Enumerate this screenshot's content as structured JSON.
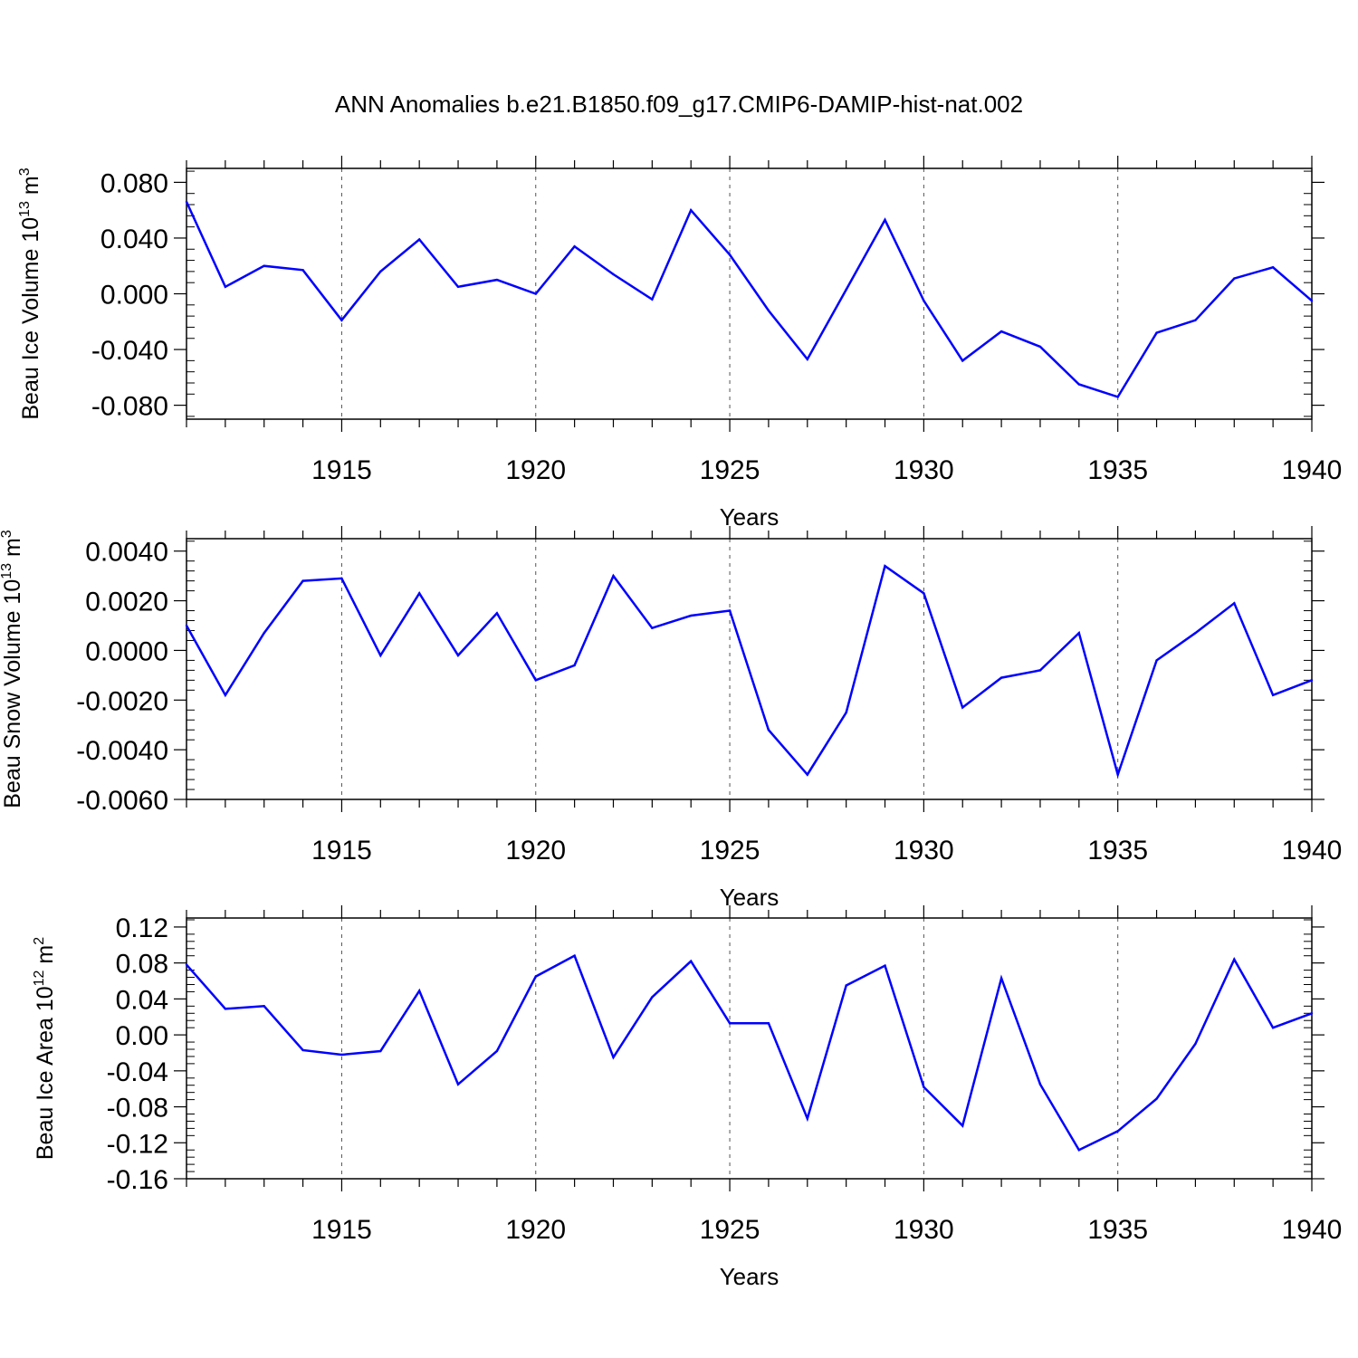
{
  "chart_data": {
    "title": "ANN Anomalies b.e21.B1850.f09_g17.CMIP6-DAMIP-hist-nat.002",
    "years": [
      1911,
      1912,
      1913,
      1914,
      1915,
      1916,
      1917,
      1918,
      1919,
      1920,
      1921,
      1922,
      1923,
      1924,
      1925,
      1926,
      1927,
      1928,
      1929,
      1930,
      1931,
      1932,
      1933,
      1934,
      1935,
      1936,
      1937,
      1938,
      1939,
      1940
    ],
    "xlim": [
      1911,
      1940
    ],
    "xticks": [
      1915,
      1920,
      1925,
      1930,
      1935,
      1940
    ],
    "panels": [
      {
        "type": "line",
        "ylabel": "Beau Ice Volume 10",
        "ylabel_exp": "13",
        "ylabel_unit": " m",
        "ylabel_unit_exp": "3",
        "xlabel": "Years",
        "ylim": [
          -0.09,
          0.09
        ],
        "yticks": [
          -0.08,
          -0.04,
          0.0,
          0.04,
          0.08
        ],
        "ytick_labels": [
          "-0.080",
          "-0.040",
          "0.000",
          "0.040",
          "0.080"
        ],
        "color": "#0000ff",
        "values": [
          0.066,
          0.005,
          0.02,
          0.017,
          -0.019,
          0.016,
          0.039,
          0.005,
          0.01,
          0.0,
          0.034,
          0.014,
          -0.004,
          0.06,
          0.028,
          -0.012,
          -0.047,
          0.003,
          0.053,
          -0.005,
          -0.048,
          -0.027,
          -0.038,
          -0.065,
          -0.074,
          -0.028,
          -0.019,
          0.011,
          0.019,
          -0.005
        ]
      },
      {
        "type": "line",
        "ylabel": "Beau Snow Volume 10",
        "ylabel_exp": "13",
        "ylabel_unit": " m",
        "ylabel_unit_exp": "3",
        "xlabel": "Years",
        "ylim": [
          -0.006,
          0.0045
        ],
        "yticks": [
          -0.006,
          -0.004,
          -0.002,
          0.0,
          0.002,
          0.004
        ],
        "ytick_labels": [
          "-0.0060",
          "-0.0040",
          "-0.0020",
          "0.0000",
          "0.0020",
          "0.0040"
        ],
        "color": "#0000ff",
        "values": [
          0.001,
          -0.0018,
          0.0007,
          0.0028,
          0.0029,
          -0.0002,
          0.0023,
          -0.0002,
          0.0015,
          -0.0012,
          -0.0006,
          0.003,
          0.0009,
          0.0014,
          0.0016,
          -0.0032,
          -0.005,
          -0.0025,
          0.0034,
          0.0023,
          -0.0023,
          -0.0011,
          -0.0008,
          0.0007,
          -0.005,
          -0.0004,
          0.0007,
          0.0019,
          -0.0018,
          -0.0012
        ]
      },
      {
        "type": "line",
        "ylabel": "Beau Ice Area 10",
        "ylabel_exp": "12",
        "ylabel_unit": " m",
        "ylabel_unit_exp": "2",
        "xlabel": "Years",
        "ylim": [
          -0.16,
          0.13
        ],
        "yticks": [
          -0.16,
          -0.12,
          -0.08,
          -0.04,
          0.0,
          0.04,
          0.08,
          0.12
        ],
        "ytick_labels": [
          "-0.16",
          "-0.12",
          "-0.08",
          "-0.04",
          "0.00",
          "0.04",
          "0.08",
          "0.12"
        ],
        "color": "#0000ff",
        "values": [
          0.078,
          0.029,
          0.032,
          -0.017,
          -0.022,
          -0.018,
          0.049,
          -0.055,
          -0.018,
          0.065,
          0.088,
          -0.025,
          0.042,
          0.082,
          0.013,
          0.013,
          -0.093,
          0.055,
          0.077,
          -0.058,
          -0.101,
          0.063,
          -0.055,
          -0.128,
          -0.107,
          -0.071,
          -0.01,
          0.084,
          0.008,
          0.024
        ]
      }
    ]
  }
}
